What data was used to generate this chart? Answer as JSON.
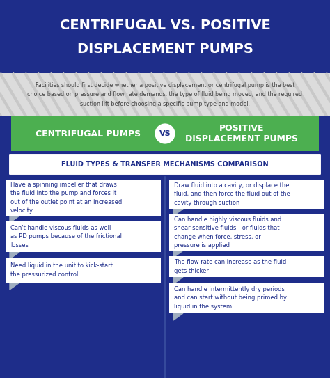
{
  "title_line1": "CENTRIFUGAL VS. POSITIVE",
  "title_line2": "DISPLACEMENT PUMPS",
  "title_bg": "#1e2d8a",
  "title_fg": "#ffffff",
  "subtitle_text": "Facilities should first decide whether a positive displacement or centrifugal pump is the best\nchoice based on pressure and flow rate demands, the type of fluid being moved, and the required\nsuction lift before choosing a specific pump type and model.",
  "subtitle_bg": "#f0f0f0",
  "subtitle_fg": "#444444",
  "vs_banner_bg": "#4caf50",
  "vs_banner_fg": "#ffffff",
  "left_label": "CENTRIFUGAL PUMPS",
  "right_label": "POSITIVE\nDISPLACEMENT PUMPS",
  "vs_circle_bg": "#ffffff",
  "vs_circle_fg": "#1e2d8a",
  "section_banner_text": "FLUID TYPES & TRANSFER MECHANISMS COMPARISON",
  "section_banner_bg": "#ffffff",
  "section_banner_fg": "#1e2d8a",
  "main_bg": "#1e2d8a",
  "card_bg": "#ffffff",
  "card_fg": "#1e2d8a",
  "arrow_color": "#a0aec0",
  "left_bullets": [
    "Have a spinning impeller that draws\nthe fluid into the pump and forces it\nout of the outlet point at an increased\nvelocity.",
    "Can't handle viscous fluids as well\nas PD pumps because of the frictional\nlosses",
    "Need liquid in the unit to kick-start\nthe pressurized control"
  ],
  "right_bullets": [
    "Draw fluid into a cavity, or displace the\nfluid, and then force the fluid out of the\ncavity through suction",
    "Can handle highly viscous fluids and\nshear sensitive fluids—or fluids that\nchange when force, stress, or\npressure is applied",
    "The flow rate can increase as the fluid\ngets thicker",
    "Can handle intermittently dry periods\nand can start without being primed by\nliquid in the system"
  ],
  "fig_w": 4.74,
  "fig_h": 5.43,
  "dpi": 100
}
